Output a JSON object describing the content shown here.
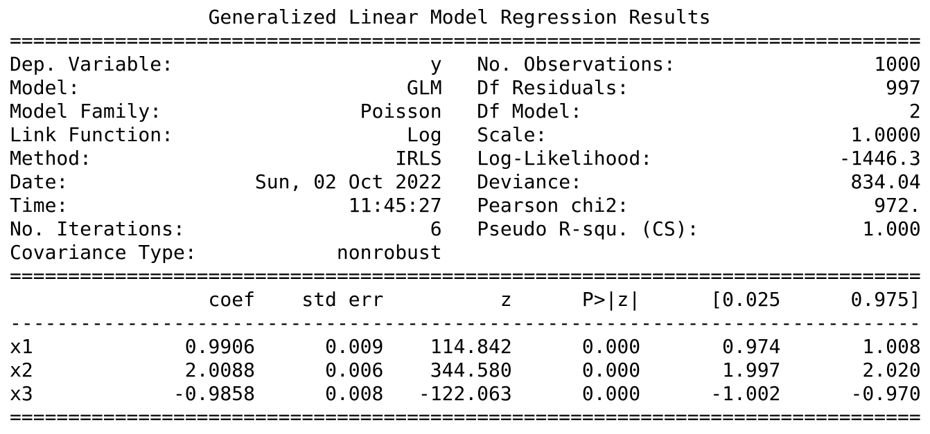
{
  "title": "Generalized Linear Model Regression Results",
  "rule_heavy": "==============================================================================",
  "rule_light": "------------------------------------------------------------------------------",
  "info": {
    "left": [
      {
        "label": "Dep. Variable:",
        "value": "y"
      },
      {
        "label": "Model:",
        "value": "GLM"
      },
      {
        "label": "Model Family:",
        "value": "Poisson"
      },
      {
        "label": "Link Function:",
        "value": "Log"
      },
      {
        "label": "Method:",
        "value": "IRLS"
      },
      {
        "label": "Date:",
        "value": "Sun, 02 Oct 2022"
      },
      {
        "label": "Time:",
        "value": "11:45:27"
      },
      {
        "label": "No. Iterations:",
        "value": "6"
      },
      {
        "label": "Covariance Type:",
        "value": "nonrobust"
      }
    ],
    "right": [
      {
        "label": "No. Observations:",
        "value": "1000"
      },
      {
        "label": "Df Residuals:",
        "value": "997"
      },
      {
        "label": "Df Model:",
        "value": "2"
      },
      {
        "label": "Scale:",
        "value": "1.0000"
      },
      {
        "label": "Log-Likelihood:",
        "value": "-1446.3"
      },
      {
        "label": "Deviance:",
        "value": "834.04"
      },
      {
        "label": "Pearson chi2:",
        "value": "972."
      },
      {
        "label": "Pseudo R-squ. (CS):",
        "value": "1.000"
      }
    ]
  },
  "coefficients": {
    "columns": [
      "coef",
      "std err",
      "z",
      "P>|z|",
      "[0.025",
      "0.975]"
    ],
    "rows": [
      {
        "name": "x1",
        "values": [
          "0.9906",
          "0.009",
          "114.842",
          "0.000",
          "0.974",
          "1.008"
        ]
      },
      {
        "name": "x2",
        "values": [
          "2.0088",
          "0.006",
          "344.580",
          "0.000",
          "1.997",
          "2.020"
        ]
      },
      {
        "name": "x3",
        "values": [
          "-0.9858",
          "0.008",
          "-122.063",
          "0.000",
          "-1.002",
          "-0.970"
        ]
      }
    ]
  }
}
